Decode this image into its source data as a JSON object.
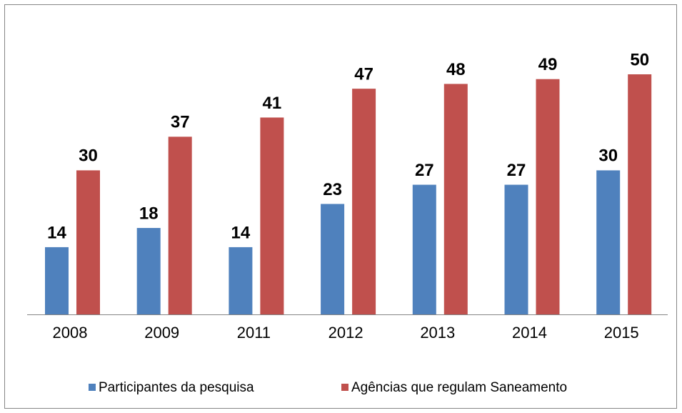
{
  "chart_data": {
    "type": "bar",
    "categories": [
      "2008",
      "2009",
      "2011",
      "2012",
      "2013",
      "2014",
      "2015"
    ],
    "series": [
      {
        "name": "Participantes da pesquisa",
        "color": "#4f81bd",
        "values": [
          14,
          18,
          14,
          23,
          27,
          27,
          30
        ]
      },
      {
        "name": "Agências que regulam Saneamento",
        "color": "#c0504d",
        "values": [
          30,
          37,
          41,
          47,
          48,
          49,
          50
        ]
      }
    ],
    "legend": "bottom"
  }
}
